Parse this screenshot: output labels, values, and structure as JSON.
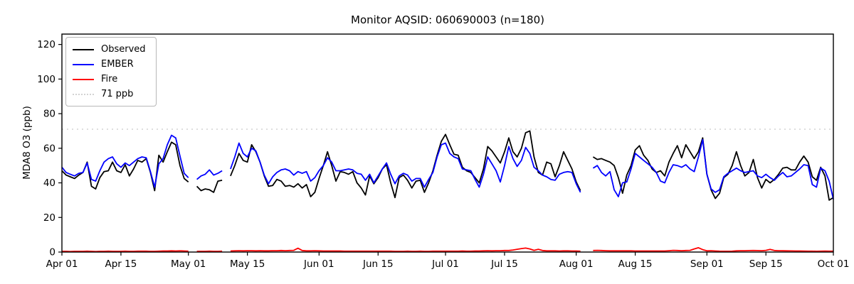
{
  "title": "Monitor AQSID: 060690003 (n=180)",
  "chart_data": {
    "type": "line",
    "title": "Monitor AQSID: 060690003 (n=180)",
    "xlabel": "",
    "ylabel": "MDA8 O3 (ppb)",
    "ylim": [
      0,
      126
    ],
    "yticks": [
      0,
      20,
      40,
      60,
      80,
      100,
      120
    ],
    "x_range_days": 183,
    "xticks": [
      {
        "day": 0,
        "label": "Apr 01"
      },
      {
        "day": 14,
        "label": "Apr 15"
      },
      {
        "day": 30,
        "label": "May 01"
      },
      {
        "day": 44,
        "label": "May 15"
      },
      {
        "day": 61,
        "label": "Jun 01"
      },
      {
        "day": 75,
        "label": "Jun 15"
      },
      {
        "day": 91,
        "label": "Jul 01"
      },
      {
        "day": 105,
        "label": "Jul 15"
      },
      {
        "day": 122,
        "label": "Aug 01"
      },
      {
        "day": 136,
        "label": "Aug 15"
      },
      {
        "day": 153,
        "label": "Sep 01"
      },
      {
        "day": 167,
        "label": "Sep 15"
      },
      {
        "day": 183,
        "label": "Oct 01"
      }
    ],
    "threshold": {
      "value": 71,
      "label": "71 ppb",
      "color": "#d3d3d3",
      "style": "dotted"
    },
    "legend_position": "upper left",
    "grid": false,
    "frame_color": "#000000",
    "legend": [
      {
        "label": "Observed",
        "color": "#000000",
        "style": "solid"
      },
      {
        "label": "EMBER",
        "color": "#0000ff",
        "style": "solid"
      },
      {
        "label": "Fire",
        "color": "#ff0000",
        "style": "solid"
      },
      {
        "label": "71 ppb",
        "color": "#d3d3d3",
        "style": "dotted"
      }
    ],
    "series": [
      {
        "name": "Observed",
        "color": "#000000",
        "values": [
          47,
          44.5,
          43.5,
          42.5,
          44.5,
          46,
          52,
          38,
          36.5,
          43,
          46.5,
          47,
          52,
          47,
          46,
          50.5,
          44,
          48,
          53,
          52,
          54,
          46,
          35.5,
          56,
          52,
          58,
          63.5,
          62,
          50,
          42.5,
          40.5,
          null,
          38,
          35.5,
          36.5,
          36,
          34.5,
          41,
          41.5,
          null,
          44,
          50,
          57,
          53,
          52,
          62,
          58,
          52,
          44,
          38,
          38.5,
          42,
          41,
          38,
          38.5,
          37.5,
          39.5,
          37,
          39,
          32,
          34.5,
          42.5,
          50,
          58,
          50,
          41,
          46.5,
          46,
          45,
          46.5,
          40,
          37,
          33,
          44,
          39.5,
          43,
          48,
          50.5,
          40,
          31.5,
          43,
          44.5,
          41.5,
          37,
          41,
          41.5,
          34.5,
          40,
          47,
          56,
          64,
          68,
          62,
          56.5,
          56,
          49,
          47,
          46,
          43,
          40,
          48,
          61,
          58.5,
          55,
          51.5,
          58,
          66,
          58,
          55,
          60,
          69,
          70,
          55,
          46,
          44.5,
          52,
          51,
          43.5,
          50,
          58,
          53,
          48,
          40.5,
          35.5,
          null,
          null,
          55,
          53.5,
          54,
          53,
          52,
          50,
          43,
          34,
          44.5,
          50,
          59,
          61.5,
          56,
          53,
          48,
          46,
          47,
          44,
          52,
          57,
          61.5,
          54.5,
          62,
          58,
          54,
          58,
          66,
          45,
          36,
          31,
          34,
          43,
          45,
          50,
          58,
          50,
          44,
          46,
          53.5,
          43,
          37,
          42,
          40,
          42,
          45,
          48.5,
          49,
          47.5,
          47.5,
          52,
          55.5,
          52,
          43.5,
          41.5,
          49,
          44,
          30,
          31.5
        ]
      },
      {
        "name": "EMBER",
        "color": "#0000ff",
        "values": [
          49,
          46,
          45,
          44,
          45.5,
          46,
          51.5,
          42,
          41,
          47,
          52,
          54,
          55,
          51,
          49,
          51.5,
          50,
          52,
          54,
          55,
          54.5,
          46.5,
          37.5,
          51,
          54,
          62,
          67.5,
          66,
          55.5,
          45.5,
          43,
          null,
          42,
          44,
          45,
          47.5,
          44.5,
          45.5,
          47,
          null,
          48,
          55,
          63,
          57,
          55,
          60,
          58.5,
          52,
          44.5,
          39.5,
          43.5,
          46,
          47.5,
          48,
          47,
          44.5,
          46.5,
          45.5,
          46.5,
          41,
          43,
          47,
          50,
          54.5,
          52,
          47,
          47,
          47.5,
          48,
          47.5,
          45.5,
          45,
          41.5,
          45,
          40,
          44,
          48,
          51.5,
          45,
          39.5,
          44,
          45.5,
          44.5,
          41,
          42.5,
          42.5,
          37.5,
          42,
          46,
          55,
          62,
          63,
          57,
          55,
          54,
          48,
          47.5,
          47,
          42,
          37.5,
          45,
          55,
          51,
          47,
          40.5,
          50,
          61,
          54,
          49.5,
          53,
          60.5,
          57,
          49,
          47,
          44.5,
          43.5,
          42,
          41.5,
          45,
          46,
          46.5,
          46,
          39.5,
          34.5,
          null,
          null,
          48.5,
          50,
          46,
          44,
          46.5,
          36,
          32,
          40,
          40.5,
          48,
          57,
          55,
          53,
          51,
          49,
          46,
          41,
          40,
          46,
          50.5,
          50,
          49,
          50.5,
          48,
          46.5,
          55,
          65,
          45,
          36.5,
          34.5,
          36,
          43.5,
          45.5,
          47,
          48.5,
          47,
          46,
          46.5,
          47,
          44,
          43,
          45,
          43,
          41.5,
          44,
          46,
          43.5,
          44,
          46,
          48,
          50.5,
          50,
          39,
          37.5,
          48.5,
          47,
          41,
          30.5
        ]
      },
      {
        "name": "Fire",
        "color": "#ff0000",
        "values": [
          0.4,
          0.4,
          0.3,
          0.4,
          0.4,
          0.4,
          0.5,
          0.4,
          0.3,
          0.4,
          0.4,
          0.5,
          0.4,
          0.4,
          0.4,
          0.5,
          0.4,
          0.4,
          0.5,
          0.5,
          0.5,
          0.4,
          0.4,
          0.5,
          0.6,
          0.6,
          0.7,
          0.6,
          0.7,
          0.6,
          0.5,
          null,
          0.4,
          0.4,
          0.4,
          0.5,
          0.4,
          0.4,
          0.5,
          null,
          0.6,
          0.7,
          0.8,
          0.7,
          0.8,
          0.8,
          0.7,
          0.8,
          0.7,
          0.7,
          0.8,
          0.8,
          0.9,
          0.8,
          0.9,
          1,
          2.2,
          0.9,
          0.7,
          0.7,
          0.8,
          0.7,
          0.6,
          0.6,
          0.6,
          0.6,
          0.6,
          0.5,
          0.5,
          0.5,
          0.5,
          0.5,
          0.5,
          0.5,
          0.5,
          0.5,
          0.5,
          0.5,
          0.5,
          0.4,
          0.4,
          0.4,
          0.5,
          0.4,
          0.4,
          0.5,
          0.4,
          0.4,
          0.5,
          0.5,
          0.5,
          0.5,
          0.5,
          0.5,
          0.5,
          0.6,
          0.5,
          0.5,
          0.6,
          0.6,
          0.7,
          0.8,
          0.7,
          0.8,
          0.8,
          0.9,
          0.9,
          1.2,
          1.6,
          2,
          2.3,
          1.8,
          1,
          1.6,
          0.9,
          0.7,
          0.7,
          0.7,
          0.6,
          0.7,
          0.7,
          0.6,
          0.6,
          0.5,
          null,
          null,
          0.9,
          1,
          0.9,
          0.8,
          0.7,
          0.7,
          0.7,
          0.7,
          0.7,
          0.7,
          0.6,
          0.6,
          0.6,
          0.6,
          0.6,
          0.6,
          0.6,
          0.6,
          0.8,
          1,
          0.9,
          0.8,
          0.9,
          1,
          1.8,
          2.5,
          1.4,
          0.7,
          0.8,
          0.6,
          0.5,
          0.45,
          0.45,
          0.5,
          0.7,
          0.8,
          0.8,
          0.85,
          0.9,
          0.85,
          0.8,
          1,
          1.5,
          0.9,
          0.8,
          0.75,
          0.7,
          0.65,
          0.6,
          0.6,
          0.55,
          0.5,
          0.5,
          0.45,
          0.5,
          0.55,
          0.5,
          0.5
        ]
      }
    ]
  }
}
